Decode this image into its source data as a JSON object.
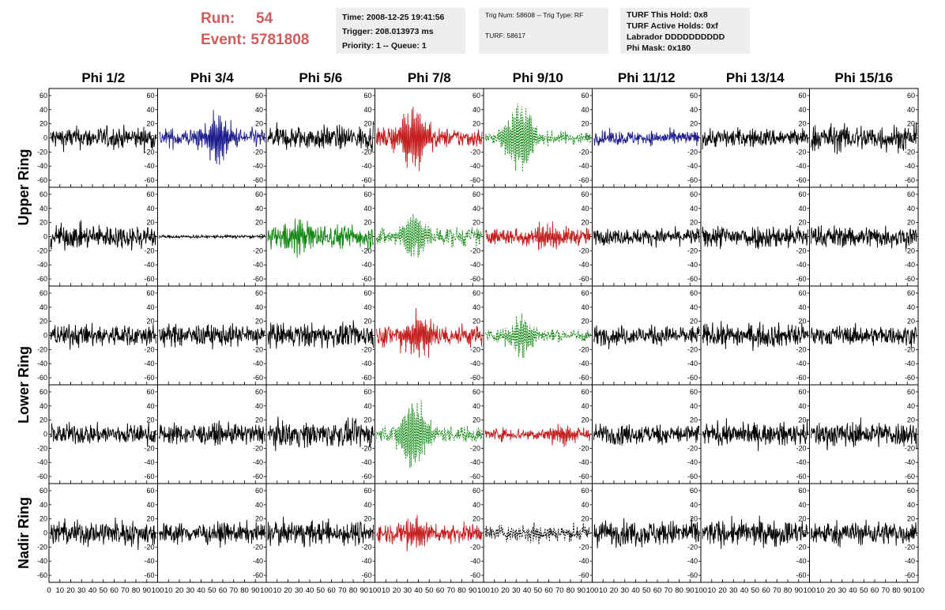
{
  "header": {
    "run_label": "Run:",
    "run_value": "54",
    "event_label": "Event:",
    "event_value": "5781808"
  },
  "info_time": {
    "time": "Time: 2008-12-25 19:41:56",
    "trigger": "Trigger: 208.013973 ms",
    "priority": "Priority: 1 -- Queue: 1"
  },
  "info_trig": {
    "trig": "Trig Num: 58608 -- Trig Type: RF",
    "turf": "TURF: 58617"
  },
  "info_turf": {
    "hold": "TURF This Hold: 0x8",
    "active": "TURF Active Holds: 0xf",
    "labrador": "Labrador DDDDDDDDDD",
    "phimask": "Phi Mask: 0x180"
  },
  "chart_data": {
    "type": "line",
    "columns": [
      "Phi 1/2",
      "Phi 3/4",
      "Phi 5/6",
      "Phi 7/8",
      "Phi 9/10",
      "Phi 11/12",
      "Phi 13/14",
      "Phi 15/16"
    ],
    "row_labels": [
      "Upper Ring",
      "Lower Ring",
      "Nadir Ring"
    ],
    "rings": [
      {
        "name": "Upper Ring",
        "rows": 2
      },
      {
        "name": "Lower Ring",
        "rows": 2
      },
      {
        "name": "Nadir Ring",
        "rows": 1
      }
    ],
    "xlim": [
      0,
      100
    ],
    "ylim": [
      -70,
      70
    ],
    "yticks": [
      -60,
      -40,
      -20,
      0,
      20,
      40,
      60
    ],
    "xticks": [
      "0",
      "10",
      "20",
      "30",
      "40",
      "50",
      "60",
      "70",
      "80",
      "90",
      "100"
    ],
    "colors": {
      "black": "#000000",
      "blue": "#1c1c8c",
      "red": "#c41e1e",
      "green": "#118811"
    },
    "panels": [
      [
        {
          "color": "black",
          "amp": 14,
          "burst": 0,
          "center": 50,
          "style": "solid"
        },
        {
          "color": "blue",
          "amp": 12,
          "burst": 32,
          "center": 55,
          "style": "solid"
        },
        {
          "color": "black",
          "amp": 15,
          "burst": 0,
          "center": 50,
          "style": "solid"
        },
        {
          "color": "red",
          "amp": 12,
          "burst": 45,
          "center": 35,
          "style": "solid"
        },
        {
          "color": "green",
          "amp": 8,
          "burst": 50,
          "center": 33,
          "style": "dashed"
        },
        {
          "color": "blue",
          "amp": 9,
          "burst": 0,
          "center": 50,
          "style": "solid"
        },
        {
          "color": "black",
          "amp": 12,
          "burst": 0,
          "center": 50,
          "style": "solid"
        },
        {
          "color": "black",
          "amp": 17,
          "burst": 0,
          "center": 50,
          "style": "solid"
        }
      ],
      [
        {
          "color": "black",
          "amp": 15,
          "burst": 0,
          "center": 50,
          "style": "solid"
        },
        {
          "color": "black",
          "amp": 2,
          "burst": 0,
          "center": 50,
          "style": "solid"
        },
        {
          "color": "green",
          "amp": 15,
          "burst": 20,
          "center": 30,
          "style": "solid"
        },
        {
          "color": "green",
          "amp": 12,
          "burst": 28,
          "center": 35,
          "style": "dashed"
        },
        {
          "color": "red",
          "amp": 11,
          "burst": 15,
          "center": 55,
          "style": "solid"
        },
        {
          "color": "black",
          "amp": 10,
          "burst": 0,
          "center": 50,
          "style": "solid"
        },
        {
          "color": "black",
          "amp": 15,
          "burst": 0,
          "center": 50,
          "style": "solid"
        },
        {
          "color": "black",
          "amp": 14,
          "burst": 0,
          "center": 50,
          "style": "solid"
        }
      ],
      [
        {
          "color": "black",
          "amp": 14,
          "burst": 0,
          "center": 50,
          "style": "solid"
        },
        {
          "color": "black",
          "amp": 14,
          "burst": 0,
          "center": 50,
          "style": "solid"
        },
        {
          "color": "black",
          "amp": 15,
          "burst": 0,
          "center": 50,
          "style": "solid"
        },
        {
          "color": "red",
          "amp": 14,
          "burst": 25,
          "center": 40,
          "style": "solid"
        },
        {
          "color": "green",
          "amp": 8,
          "burst": 28,
          "center": 35,
          "style": "dashed"
        },
        {
          "color": "black",
          "amp": 12,
          "burst": 0,
          "center": 50,
          "style": "solid"
        },
        {
          "color": "black",
          "amp": 15,
          "burst": 0,
          "center": 50,
          "style": "solid"
        },
        {
          "color": "black",
          "amp": 12,
          "burst": 0,
          "center": 50,
          "style": "solid"
        }
      ],
      [
        {
          "color": "black",
          "amp": 13,
          "burst": 0,
          "center": 50,
          "style": "solid"
        },
        {
          "color": "black",
          "amp": 13,
          "burst": 0,
          "center": 50,
          "style": "solid"
        },
        {
          "color": "black",
          "amp": 16,
          "burst": 0,
          "center": 50,
          "style": "solid"
        },
        {
          "color": "green",
          "amp": 10,
          "burst": 48,
          "center": 35,
          "style": "dashed"
        },
        {
          "color": "red",
          "amp": 8,
          "burst": 12,
          "center": 75,
          "style": "solid"
        },
        {
          "color": "black",
          "amp": 13,
          "burst": 0,
          "center": 50,
          "style": "solid"
        },
        {
          "color": "black",
          "amp": 14,
          "burst": 0,
          "center": 50,
          "style": "solid"
        },
        {
          "color": "black",
          "amp": 16,
          "burst": 0,
          "center": 50,
          "style": "solid"
        }
      ],
      [
        {
          "color": "black",
          "amp": 16,
          "burst": 0,
          "center": 50,
          "style": "solid"
        },
        {
          "color": "black",
          "amp": 13,
          "burst": 0,
          "center": 50,
          "style": "solid"
        },
        {
          "color": "black",
          "amp": 15,
          "burst": 0,
          "center": 50,
          "style": "solid"
        },
        {
          "color": "red",
          "amp": 12,
          "burst": 20,
          "center": 35,
          "style": "solid"
        },
        {
          "color": "black",
          "amp": 10,
          "burst": 8,
          "center": 50,
          "style": "dashed"
        },
        {
          "color": "black",
          "amp": 16,
          "burst": 0,
          "center": 50,
          "style": "solid"
        },
        {
          "color": "black",
          "amp": 16,
          "burst": 0,
          "center": 50,
          "style": "solid"
        },
        {
          "color": "black",
          "amp": 15,
          "burst": 0,
          "center": 50,
          "style": "solid"
        }
      ]
    ]
  }
}
